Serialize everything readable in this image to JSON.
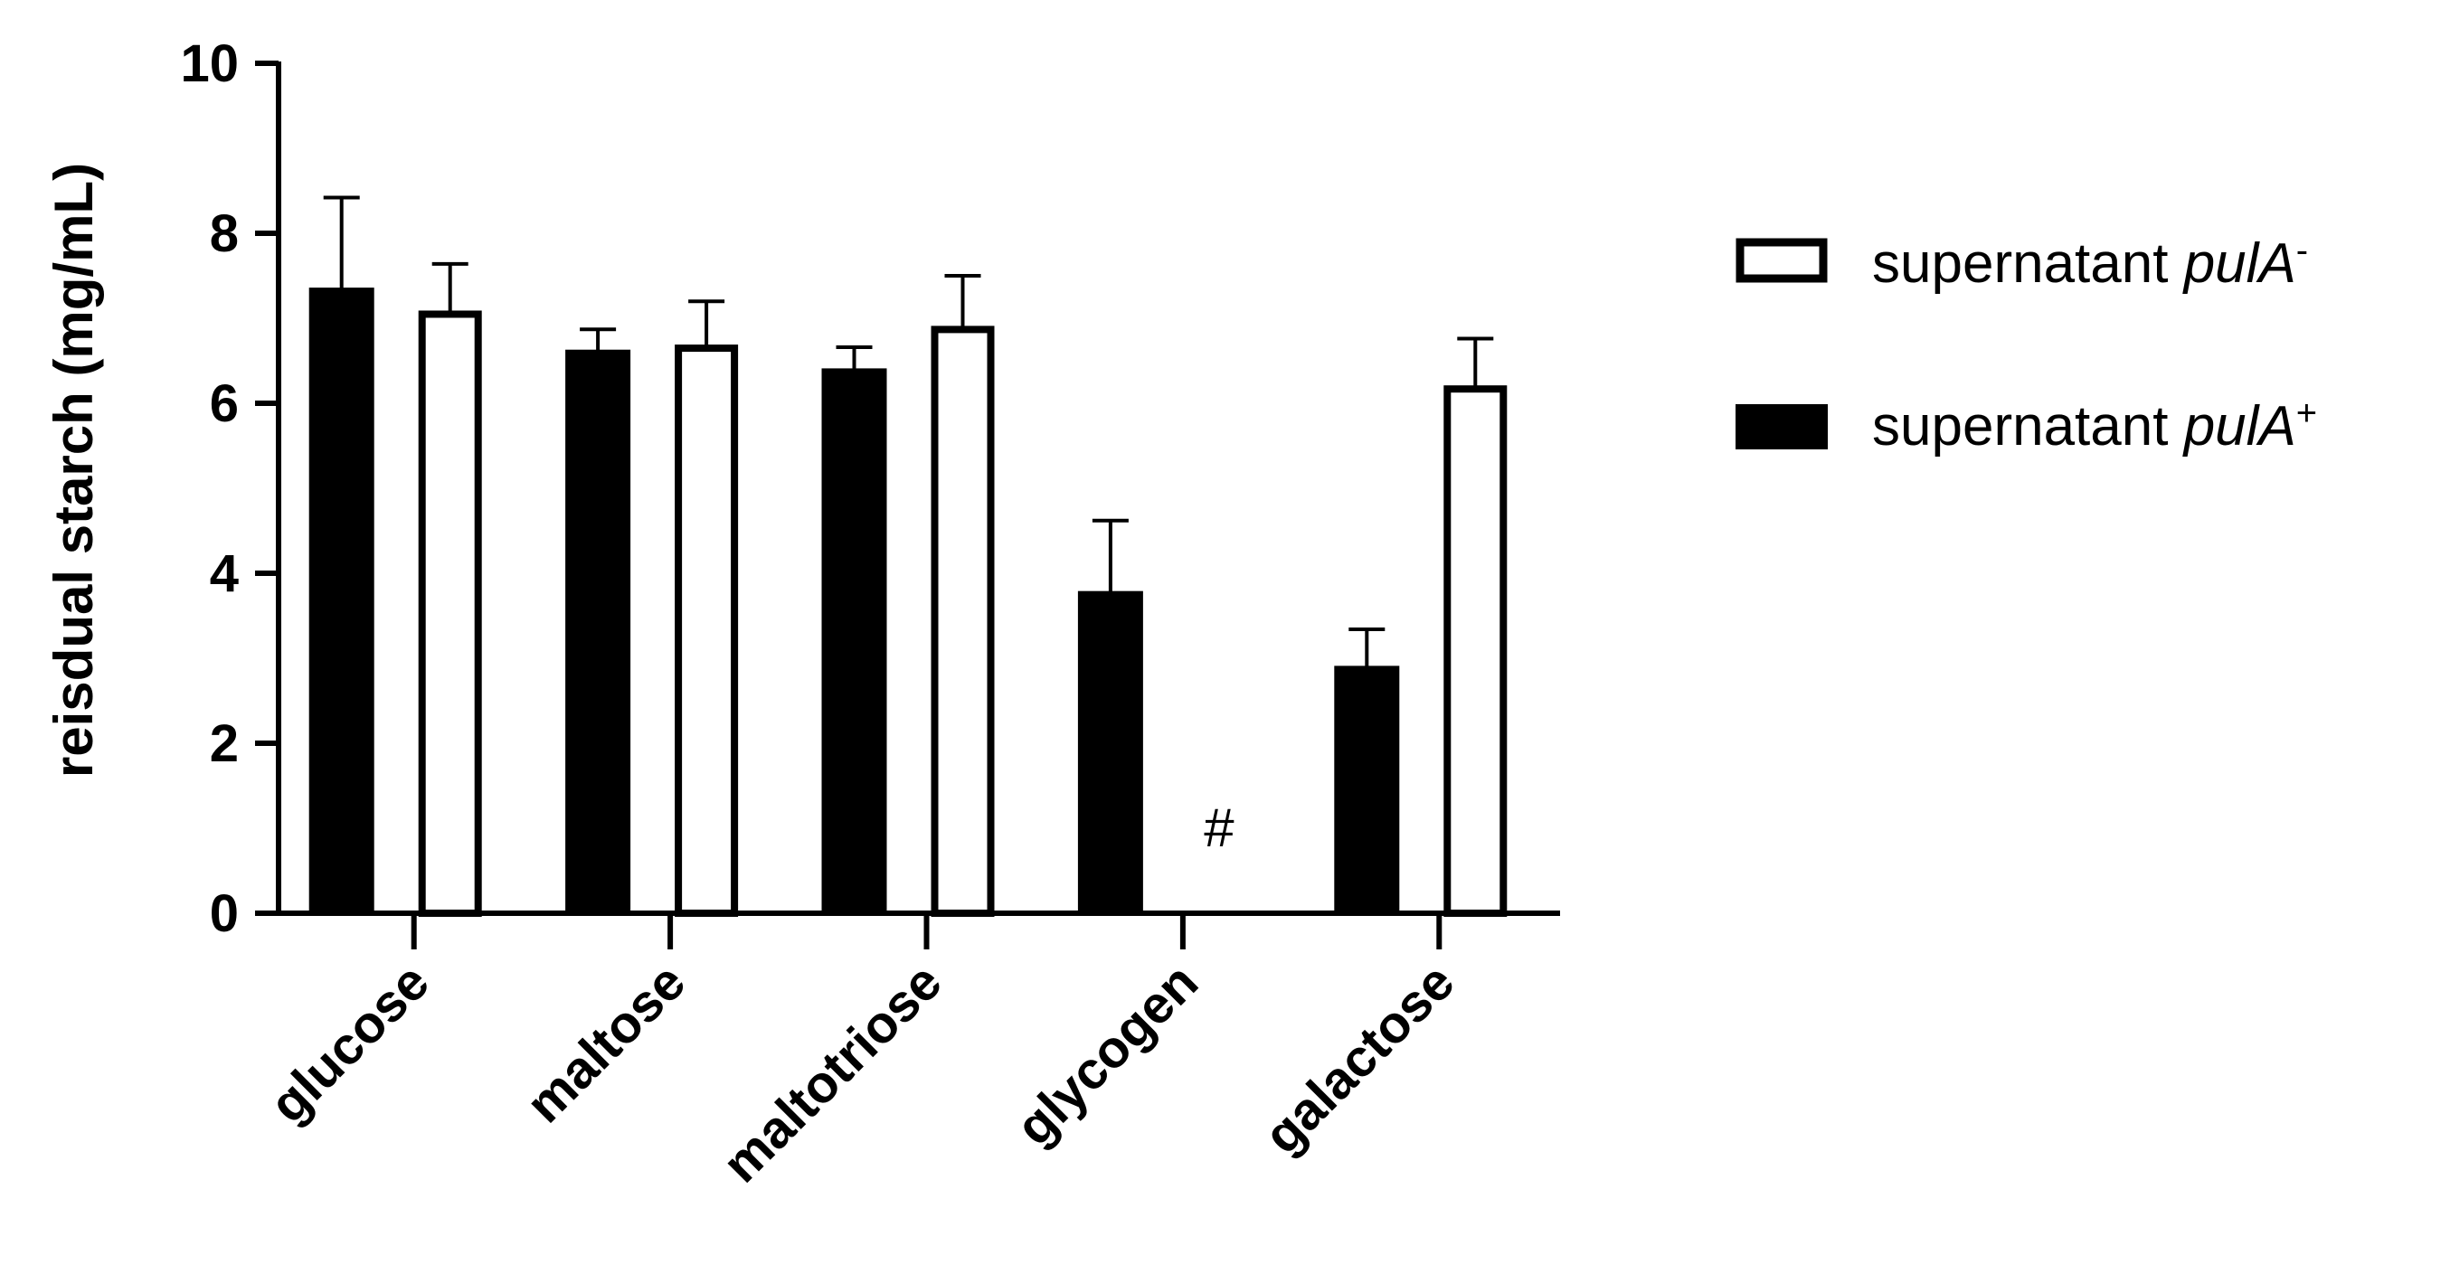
{
  "chart_data": {
    "type": "bar",
    "title": "",
    "xlabel": "",
    "ylabel": "reisdual starch (mg/mL)",
    "ylim": [
      0,
      10
    ],
    "yticks": [
      "0",
      "2",
      "4",
      "6",
      "8",
      "10"
    ],
    "categories": [
      "glucose",
      "maltose",
      "maltotriose",
      "glycogen",
      "galactose"
    ],
    "series": [
      {
        "name": "supernatant pulA+",
        "legend_base": "supernatant ",
        "legend_italic": "pulA",
        "legend_sup": "+",
        "fill": "#000000",
        "values": [
          7.35,
          6.62,
          6.4,
          3.78,
          2.9
        ],
        "errors": [
          1.07,
          0.25,
          0.26,
          0.84,
          0.44
        ]
      },
      {
        "name": "supernatant pulA-",
        "legend_base": "supernatant ",
        "legend_italic": "pulA",
        "legend_sup": "-",
        "fill": "#ffffff",
        "values": [
          7.08,
          6.68,
          6.9,
          null,
          6.2
        ],
        "errors": [
          0.56,
          0.52,
          0.6,
          null,
          0.56
        ]
      }
    ],
    "legend_order": [
      1,
      0
    ],
    "legend_position": "right",
    "annotations": [
      {
        "text": "#",
        "category": "glycogen",
        "series": 1,
        "y": 1.0
      }
    ],
    "grid": false,
    "error_bars": "upper"
  }
}
